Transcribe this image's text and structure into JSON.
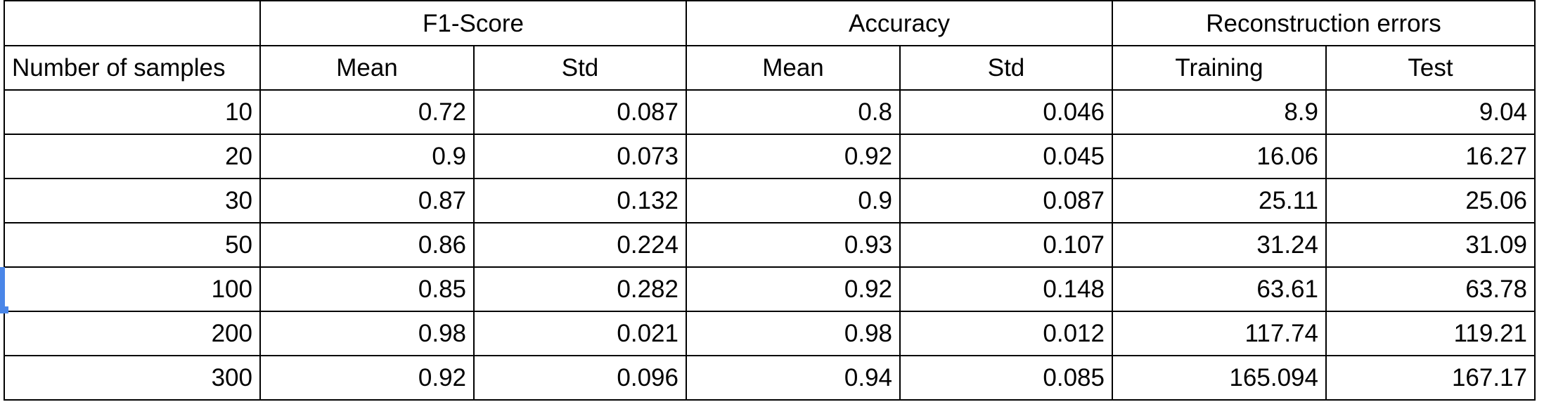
{
  "table": {
    "groups": [
      "",
      "F1-Score",
      "Accuracy",
      "Reconstruction errors"
    ],
    "subheaders": [
      "Number of samples",
      "Mean",
      "Std",
      "Mean",
      "Std",
      "Training",
      "Test"
    ],
    "rows": [
      [
        "10",
        "0.72",
        "0.087",
        "0.8",
        "0.046",
        "8.9",
        "9.04"
      ],
      [
        "20",
        "0.9",
        "0.073",
        "0.92",
        "0.045",
        "16.06",
        "16.27"
      ],
      [
        "30",
        "0.87",
        "0.132",
        "0.9",
        "0.087",
        "25.11",
        "25.06"
      ],
      [
        "50",
        "0.86",
        "0.224",
        "0.93",
        "0.107",
        "31.24",
        "31.09"
      ],
      [
        "100",
        "0.85",
        "0.282",
        "0.92",
        "0.148",
        "63.61",
        "63.78"
      ],
      [
        "200",
        "0.98",
        "0.021",
        "0.98",
        "0.012",
        "117.74",
        "119.21"
      ],
      [
        "300",
        "0.92",
        "0.096",
        "0.94",
        "0.085",
        "165.094",
        "167.17"
      ]
    ]
  },
  "selection": {
    "color": "#4a86e8"
  }
}
